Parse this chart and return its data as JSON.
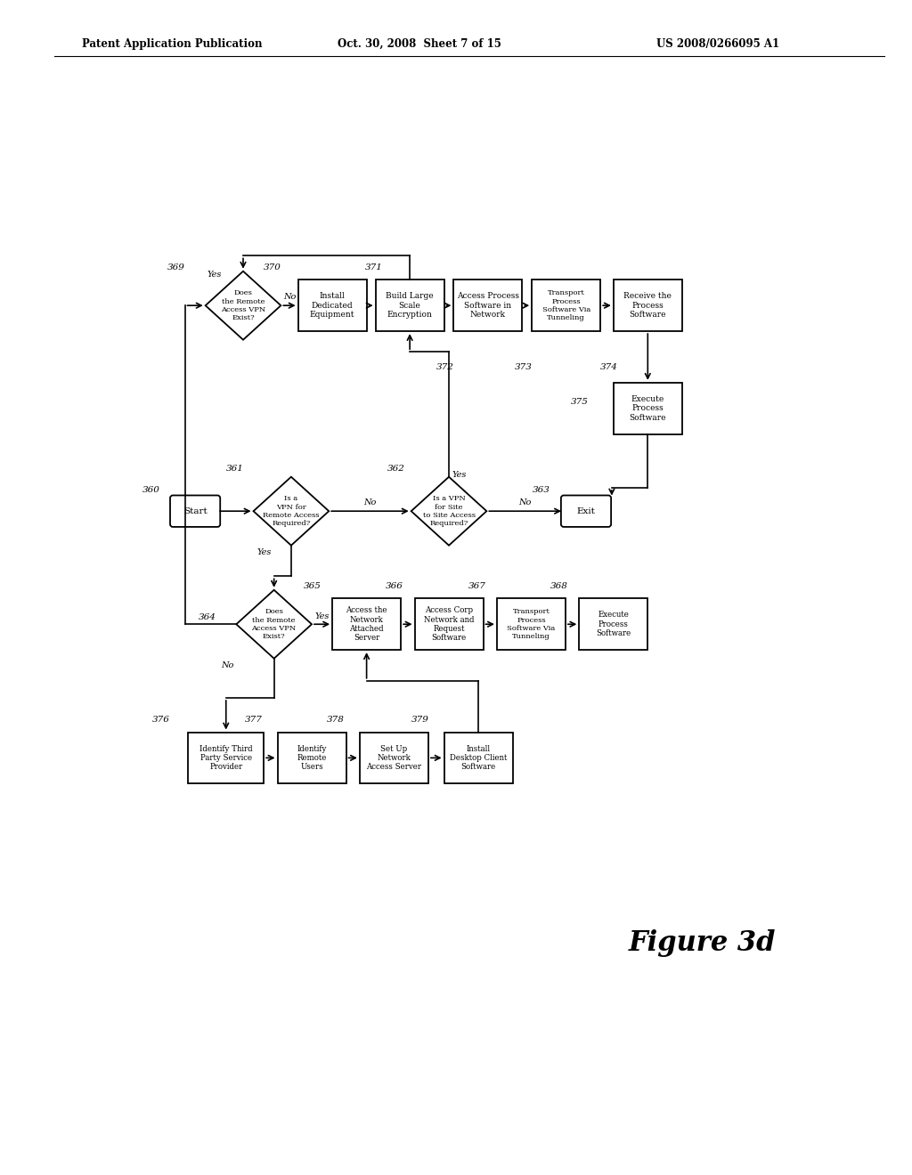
{
  "title_left": "Patent Application Publication",
  "title_mid": "Oct. 30, 2008  Sheet 7 of 15",
  "title_right": "US 2008/0266095 A1",
  "figure_label": "Figure 3d",
  "bg_color": "#ffffff",
  "line_color": "#000000"
}
